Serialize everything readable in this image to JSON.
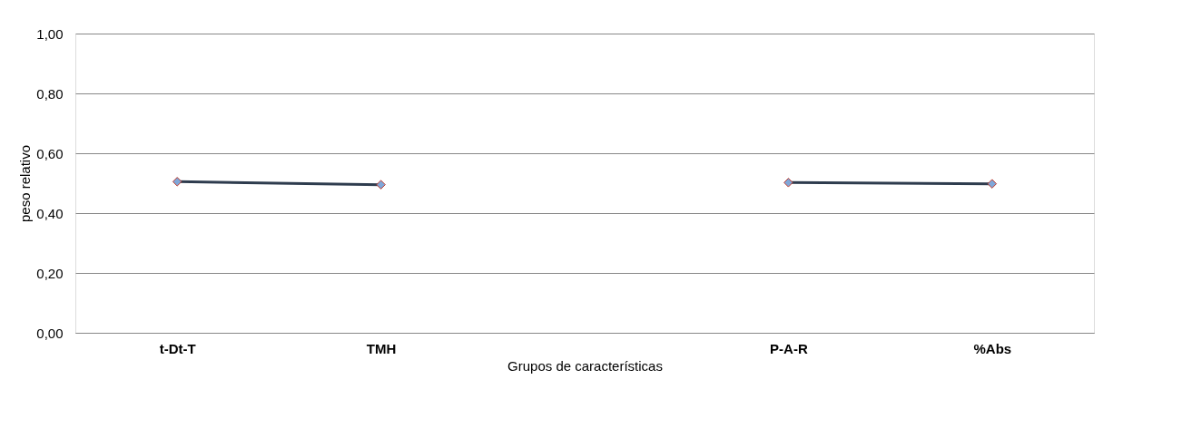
{
  "chart_data": {
    "type": "line",
    "xlabel": "Grupos de características",
    "ylabel": "peso relativo",
    "categories": [
      "t-Dt-T",
      "TMH",
      null,
      "P-A-R",
      "%Abs"
    ],
    "series": [
      {
        "color": "#2e3c4e",
        "values": [
          0.505,
          0.495,
          null,
          0.502,
          0.498
        ]
      }
    ],
    "ylim": [
      0,
      1
    ],
    "yticks": [
      {
        "value": 0,
        "label": "0,00"
      },
      {
        "value": 0.2,
        "label": "0,20"
      },
      {
        "value": 0.4,
        "label": "0,40"
      },
      {
        "value": 0.6,
        "label": "0,60"
      },
      {
        "value": 0.8,
        "label": "0,80"
      },
      {
        "value": 1,
        "label": "1,00"
      }
    ],
    "grid": "y",
    "legend": false,
    "marker": "diamond",
    "line_style": "solid"
  }
}
